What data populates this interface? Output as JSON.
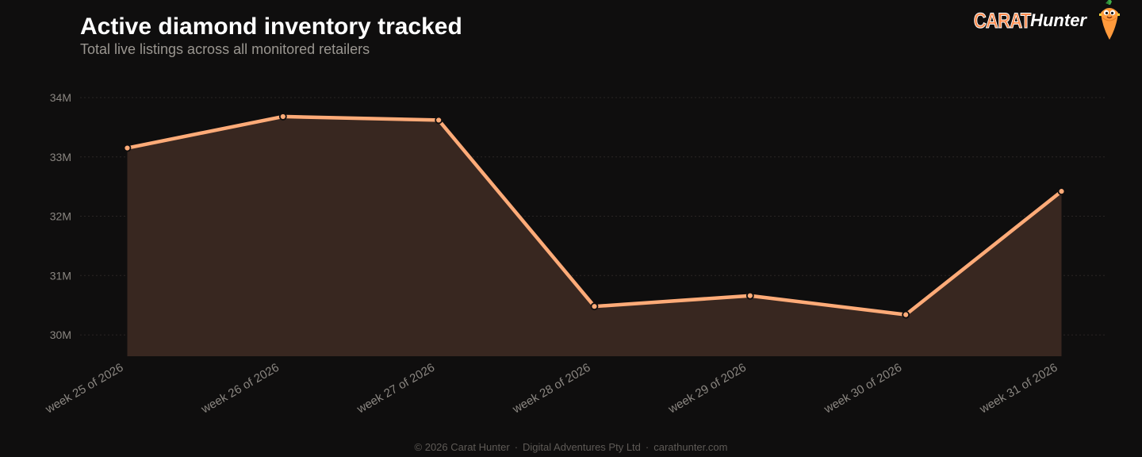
{
  "header": {
    "title": "Active diamond inventory tracked",
    "subtitle": "Total live listings across all monitored retailers"
  },
  "brand": {
    "word1": "CARAT",
    "word2": "Hunter",
    "mascot_icon": "carrot-mascot-icon",
    "accent_color": "#ff8a4c"
  },
  "footer": {
    "copyright": "© 2026 Carat Hunter",
    "company": "Digital Adventures Pty Ltd",
    "website": "carathunter.com",
    "separator": "·"
  },
  "chart_data": {
    "type": "area",
    "title": "Active diamond inventory tracked",
    "subtitle": "Total live listings across all monitored retailers",
    "xlabel": "",
    "ylabel": "",
    "categories": [
      "week 25 of 2026",
      "week 26 of 2026",
      "week 27 of 2026",
      "week 28 of 2026",
      "week 29 of 2026",
      "week 30 of 2026",
      "week 31 of 2026"
    ],
    "values": [
      33150000,
      33680000,
      33620000,
      30480000,
      30660000,
      30340000,
      32420000
    ],
    "ylim": [
      29640000,
      34000000
    ],
    "y_ticks": [
      30000000,
      31000000,
      32000000,
      33000000,
      34000000
    ],
    "y_tick_labels": [
      "30M",
      "31M",
      "32M",
      "33M",
      "34M"
    ],
    "grid": true,
    "legend": "none",
    "colors": {
      "line": "#ffab78",
      "fill": "#382720",
      "grid": "#2a2624",
      "tick_text": "#8a8681",
      "marker_fill": "#ffab78",
      "marker_stroke": "#0f0e0e"
    }
  }
}
